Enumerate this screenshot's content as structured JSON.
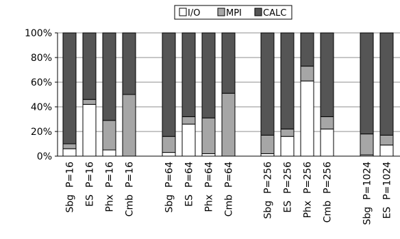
{
  "chart_data": {
    "type": "bar",
    "stacked": true,
    "percent_stacked": true,
    "title": "",
    "xlabel": "",
    "ylabel": "",
    "ylim": [
      0,
      100
    ],
    "yticks": [
      "0%",
      "20%",
      "40%",
      "60%",
      "80%",
      "100%"
    ],
    "grid": true,
    "legend_position": "top",
    "categories": [
      "Sbg P=16",
      "ES P=16",
      "Phx P=16",
      "Cmb P=16",
      "Sbg P=64",
      "ES P=64",
      "Phx P=64",
      "Cmb P=64",
      "Sbg P=256",
      "ES P=256",
      "Phx P=256",
      "Cmb P=256",
      "Sbg P=1024",
      "ES P=1024"
    ],
    "groups": [
      [
        "Sbg P=16",
        "ES P=16",
        "Phx P=16",
        "Cmb P=16"
      ],
      [
        "Sbg P=64",
        "ES P=64",
        "Phx P=64",
        "Cmb P=64"
      ],
      [
        "Sbg P=256",
        "ES P=256",
        "Phx P=256",
        "Cmb P=256"
      ],
      [
        "Sbg P=1024",
        "ES P=1024"
      ]
    ],
    "series": [
      {
        "name": "I/O",
        "color": "#ffffff",
        "values": [
          6,
          42,
          5,
          0,
          3,
          26,
          2,
          0,
          2,
          16,
          61,
          22,
          1,
          9
        ]
      },
      {
        "name": "MPI",
        "color": "#a6a6a6",
        "values": [
          4,
          4,
          24,
          50,
          13,
          6,
          29,
          51,
          15,
          6,
          12,
          10,
          17,
          8
        ]
      },
      {
        "name": "CALC",
        "color": "#555555",
        "values": [
          90,
          54,
          71,
          50,
          84,
          68,
          69,
          49,
          83,
          78,
          27,
          68,
          82,
          83
        ]
      }
    ]
  }
}
